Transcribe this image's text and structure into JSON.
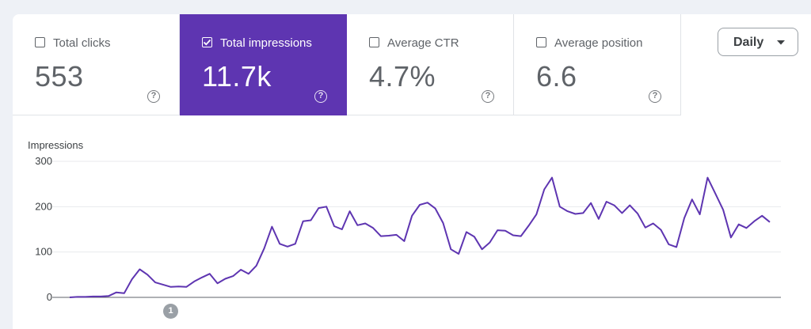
{
  "metrics": [
    {
      "label": "Total clicks",
      "value": "553",
      "checked": false
    },
    {
      "label": "Total impressions",
      "value": "11.7k",
      "checked": true
    },
    {
      "label": "Average CTR",
      "value": "4.7%",
      "checked": false
    },
    {
      "label": "Average position",
      "value": "6.6",
      "checked": false
    }
  ],
  "help_glyph": "?",
  "period_select": {
    "value": "Daily"
  },
  "colors": {
    "accent": "#5e35b1",
    "line": "#5e35b1"
  },
  "annotation": {
    "label": "1"
  },
  "chart_data": {
    "type": "line",
    "ylabel": "Impressions",
    "ylim": [
      0,
      300
    ],
    "yticks": [
      0,
      100,
      200,
      300
    ],
    "grid": true,
    "series": [
      {
        "values": [
          0,
          1,
          1,
          2,
          2,
          3,
          11,
          9,
          40,
          62,
          50,
          33,
          28,
          23,
          24,
          23,
          35,
          44,
          52,
          31,
          41,
          47,
          61,
          52,
          70,
          108,
          156,
          118,
          112,
          118,
          168,
          170,
          197,
          200,
          157,
          150,
          190,
          159,
          163,
          153,
          135,
          136,
          138,
          124,
          180,
          204,
          209,
          196,
          164,
          106,
          96,
          144,
          134,
          106,
          121,
          148,
          147,
          137,
          135,
          158,
          183,
          238,
          264,
          200,
          190,
          184,
          186,
          208,
          173,
          211,
          203,
          186,
          203,
          185,
          154,
          163,
          149,
          117,
          111,
          175,
          216,
          183,
          264,
          229,
          193,
          132,
          161,
          153,
          168,
          180,
          166
        ]
      }
    ]
  }
}
